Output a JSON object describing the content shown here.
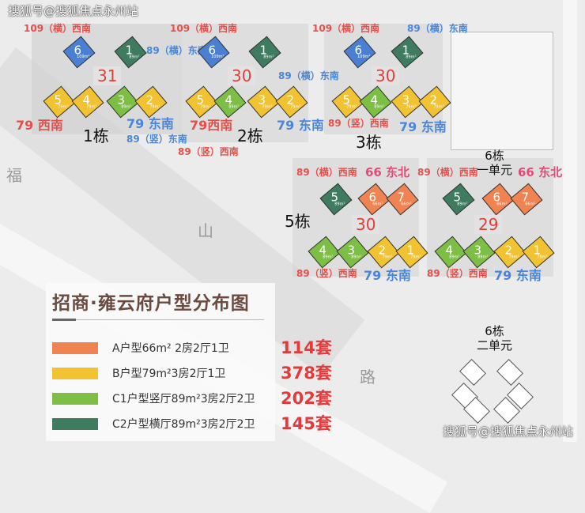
{
  "title": "招商·雍云府户型分布图",
  "watermark": "搜狐号@搜狐焦点永州站",
  "map_labels": {
    "fu": "福",
    "shan": "山",
    "lu": "路"
  },
  "colors": {
    "A": "#ef8352",
    "B": "#f1c232",
    "C1": "#7dbf44",
    "C2": "#3e7b5f",
    "109": "#4b7fd1"
  },
  "buildings": [
    {
      "name": "1栋",
      "floors": "31",
      "units": [
        {
          "n": "6",
          "a": "109m²"
        },
        {
          "n": "1",
          "a": "89m²"
        },
        {
          "n": "5",
          "a": "79m²"
        },
        {
          "n": "4",
          "a": "79m²"
        },
        {
          "n": "3",
          "a": "89m²"
        },
        {
          "n": "2",
          "a": "79m²"
        }
      ],
      "labels": [
        "109（横）西南",
        "89（横）东南",
        "79 西南",
        "79 东南",
        "89（竖）东南"
      ]
    },
    {
      "name": "2栋",
      "floors": "30",
      "units": [
        {
          "n": "6",
          "a": "109m²"
        },
        {
          "n": "1",
          "a": "89m²"
        },
        {
          "n": "5",
          "a": "79m²"
        },
        {
          "n": "4",
          "a": "89m²"
        },
        {
          "n": "3",
          "a": "79m²"
        },
        {
          "n": "2",
          "a": "79m²"
        }
      ],
      "labels": [
        "109（横）西南",
        "89（横）东南",
        "79西南",
        "79 东南",
        "89（竖）西南"
      ]
    },
    {
      "name": "3栋",
      "floors": "30",
      "units": [
        {
          "n": "6",
          "a": "109m²"
        },
        {
          "n": "1",
          "a": "89m²"
        },
        {
          "n": "5",
          "a": "79m²"
        },
        {
          "n": "4",
          "a": "89m²"
        },
        {
          "n": "3",
          "a": "79m²"
        },
        {
          "n": "2",
          "a": "79m²"
        }
      ],
      "labels": [
        "109（横）西南",
        "89（横）东南",
        "79 东南",
        "89（竖）西南"
      ]
    },
    {
      "name": "5栋",
      "floors": "30",
      "units": [
        {
          "n": "5",
          "a": "89m²"
        },
        {
          "n": "6",
          "a": "66m²"
        },
        {
          "n": "7",
          "a": "66m²"
        },
        {
          "n": "4",
          "a": "89m²"
        },
        {
          "n": "3",
          "a": "89m²"
        },
        {
          "n": "2",
          "a": "79m²"
        },
        {
          "n": "1",
          "a": "79m²"
        }
      ],
      "labels": [
        "89（横）西南",
        "66 东北",
        "89（竖）西南",
        "79 东南"
      ]
    },
    {
      "name": "6栋",
      "sub": "一单元",
      "floors": "29",
      "units": [
        {
          "n": "5",
          "a": "89m²"
        },
        {
          "n": "6",
          "a": "66m²"
        },
        {
          "n": "7",
          "a": "66m²"
        },
        {
          "n": "4",
          "a": "89m²"
        },
        {
          "n": "3",
          "a": "89m²"
        },
        {
          "n": "2",
          "a": "79m²"
        },
        {
          "n": "1",
          "a": "79m²"
        }
      ],
      "labels": [
        "89（横）西南",
        "66 东北",
        "89（竖）西南",
        "79 东南"
      ]
    },
    {
      "name": "6栋",
      "sub": "二单元"
    }
  ],
  "legend": [
    {
      "type": "A户型66m² 2房2厅1卫",
      "count": "114套"
    },
    {
      "type": "B户型79m²3房2厅1卫",
      "count": "378套"
    },
    {
      "type": "C1户型竖厅89m²3房2厅2卫",
      "count": "202套"
    },
    {
      "type": "C2户型横厅89m²3房2厅2卫",
      "count": "145套"
    }
  ]
}
